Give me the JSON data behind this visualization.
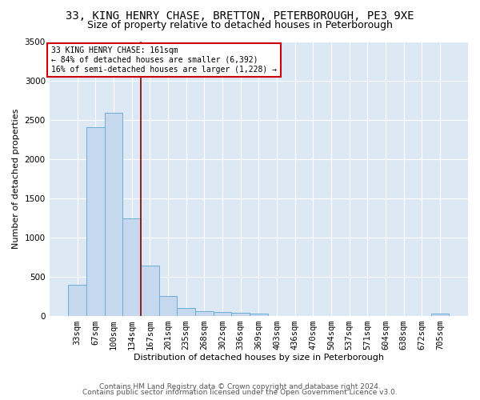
{
  "title_line1": "33, KING HENRY CHASE, BRETTON, PETERBOROUGH, PE3 9XE",
  "title_line2": "Size of property relative to detached houses in Peterborough",
  "xlabel": "Distribution of detached houses by size in Peterborough",
  "ylabel": "Number of detached properties",
  "footer_line1": "Contains HM Land Registry data © Crown copyright and database right 2024.",
  "footer_line2": "Contains public sector information licensed under the Open Government Licence v3.0.",
  "categories": [
    "33sqm",
    "67sqm",
    "100sqm",
    "134sqm",
    "167sqm",
    "201sqm",
    "235sqm",
    "268sqm",
    "302sqm",
    "336sqm",
    "369sqm",
    "403sqm",
    "436sqm",
    "470sqm",
    "504sqm",
    "537sqm",
    "571sqm",
    "604sqm",
    "638sqm",
    "672sqm",
    "705sqm"
  ],
  "values": [
    390,
    2400,
    2590,
    1240,
    640,
    255,
    100,
    60,
    50,
    40,
    30,
    0,
    0,
    0,
    0,
    0,
    0,
    0,
    0,
    0,
    30
  ],
  "bar_color": "#c5d8ee",
  "bar_edge_color": "#6aaed6",
  "annotation_text": "33 KING HENRY CHASE: 161sqm\n← 84% of detached houses are smaller (6,392)\n16% of semi-detached houses are larger (1,228) →",
  "vline_color": "#8b0000",
  "annotation_box_color": "#ffffff",
  "annotation_box_edge": "#cc0000",
  "ylim": [
    0,
    3500
  ],
  "yticks": [
    0,
    500,
    1000,
    1500,
    2000,
    2500,
    3000,
    3500
  ],
  "bg_color": "#dde8f5",
  "grid_color": "#ffffff",
  "fig_bg_color": "#ffffff",
  "title1_fontsize": 10,
  "title2_fontsize": 9,
  "axis_label_fontsize": 8,
  "tick_fontsize": 7.5,
  "footer_fontsize": 6.5
}
